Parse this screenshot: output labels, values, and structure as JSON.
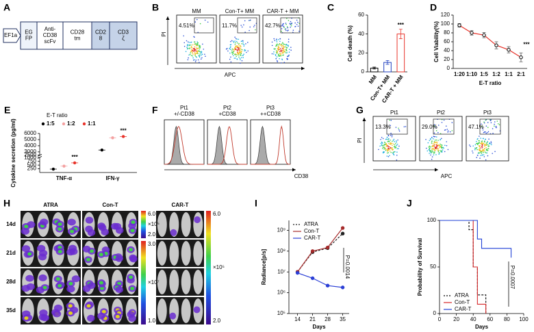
{
  "panel_a": {
    "label": "A",
    "segments": [
      [
        "EF1a"
      ],
      [
        "EG",
        "FP"
      ],
      [
        "Anti-",
        "CD38",
        "scFv"
      ],
      [
        "CD28",
        "tm"
      ],
      [
        "CD2",
        "8"
      ],
      [
        "CD3",
        "ζ"
      ]
    ]
  },
  "panel_b": {
    "label": "B",
    "plots": [
      {
        "title": "MM",
        "gate": "4.51%"
      },
      {
        "title": "Con-T+ MM",
        "gate": "11.7%"
      },
      {
        "title": "CAR-T + MM",
        "gate": "42.7%"
      }
    ],
    "y_label": "PI",
    "x_label": "APC"
  },
  "panel_f": {
    "label": "F",
    "plots": [
      {
        "title": [
          "Pt1",
          "+/-CD38"
        ]
      },
      {
        "title": [
          "Pt2",
          "+CD38"
        ]
      },
      {
        "title": [
          "Pt3",
          "++CD38"
        ]
      }
    ],
    "x_label": "CD38"
  },
  "panel_g": {
    "label": "G",
    "plots": [
      {
        "title": "Pt1",
        "gate": "13.3%"
      },
      {
        "title": "Pt2",
        "gate": "29.0%"
      },
      {
        "title": "Pt3",
        "gate": "47.1%"
      }
    ],
    "y_label": "PI",
    "x_label": "APC"
  },
  "panel_h": {
    "label": "H",
    "columns": [
      "ATRA",
      "Con-T",
      "CAR-T"
    ],
    "rows": [
      "14d",
      "21d",
      "28d",
      "35d"
    ],
    "scales": [
      [
        "6.0",
        "×10⁵",
        "2.0"
      ],
      [
        "3.0",
        "×10⁷",
        "1.0"
      ],
      [
        "6.0",
        "×10⁵",
        "2.0"
      ]
    ]
  },
  "chart_data": [
    {
      "type": "bar",
      "panel_label": "C",
      "categories": [
        "MM",
        "Con-T+ MM",
        "CAR-T + MM"
      ],
      "values": [
        4,
        10,
        40
      ],
      "errors": [
        1,
        2,
        5
      ],
      "colors": [
        "#000000",
        "#1f3fbf",
        "#e8332a"
      ],
      "ylim": [
        0,
        60
      ],
      "yticks": [
        0,
        20,
        40,
        60
      ],
      "y_label": "Cell death (%)",
      "annotation": "***"
    },
    {
      "type": "line",
      "panel_label": "D",
      "categories": [
        "1:20",
        "1:10",
        "1:5",
        "1:2",
        "1:1",
        "2:1"
      ],
      "values": [
        97,
        80,
        75,
        52,
        42,
        25
      ],
      "errors": [
        4,
        5,
        6,
        8,
        7,
        10
      ],
      "color": "#000000",
      "line_color": "#e8332a",
      "ylim": [
        0,
        120
      ],
      "yticks": [
        0,
        20,
        40,
        60,
        80,
        100,
        120
      ],
      "x_label": "E-T ratio",
      "y_label": "Cell Viability(%)",
      "annotation": "***"
    },
    {
      "type": "dot",
      "panel_label": "E",
      "categories": [
        "TNF-α",
        "IFN-γ"
      ],
      "legend_title": "E-T ratio",
      "series": [
        {
          "name": "1:5",
          "color": "#000000",
          "values": [
            230,
            3300
          ]
        },
        {
          "name": "1:2",
          "color": "#f4a0a0",
          "values": [
            430,
            5300
          ]
        },
        {
          "name": "1:1",
          "color": "#e8332a",
          "values": [
            650,
            5500
          ]
        }
      ],
      "ylim": [
        0,
        6000
      ],
      "axis_break": [
        1000,
        2500
      ],
      "yticks": [
        250,
        500,
        750,
        1000,
        2500,
        3000,
        4000,
        5000,
        6000
      ],
      "y_label": "Cytokine secretion (pg/ml)",
      "annotations": [
        "***",
        "***"
      ]
    },
    {
      "type": "line",
      "panel_label": "I",
      "x": [
        14,
        21,
        28,
        35
      ],
      "xlim": [
        10,
        38
      ],
      "xticks": [
        14,
        21,
        28,
        35
      ],
      "log_y": true,
      "ylim": [
        100000,
        3000000000
      ],
      "yticks": [
        {
          "value": 100000,
          "label": "10⁵"
        },
        {
          "value": 1000000,
          "label": "10⁶"
        },
        {
          "value": 10000000,
          "label": "10⁷"
        },
        {
          "value": 100000000,
          "label": "10⁸"
        },
        {
          "value": 1000000000,
          "label": "10⁹"
        }
      ],
      "series": [
        {
          "name": "ATRA",
          "color": "#222222",
          "dash": true,
          "values": [
            10000000,
            90000000,
            140000000,
            700000000
          ]
        },
        {
          "name": "Con-T",
          "color": "#a52a2a",
          "values": [
            10000000,
            100000000,
            150000000,
            1300000000
          ]
        },
        {
          "name": "CAR-T",
          "color": "#2b3fd6",
          "values": [
            9000000,
            5000000,
            2200000,
            1800000
          ]
        }
      ],
      "legend": "upper left",
      "x_label": "Days",
      "y_label": "Radiance[p/s]",
      "annotation": "P=0.0014"
    },
    {
      "type": "step",
      "panel_label": "J",
      "xlim": [
        0,
        100
      ],
      "xticks": [
        0,
        20,
        40,
        60,
        80,
        100
      ],
      "ylim": [
        0,
        100
      ],
      "yticks": [
        0,
        50,
        100
      ],
      "series": [
        {
          "name": "ATRA",
          "color": "#000000",
          "dash": true,
          "x": [
            0,
            35,
            40,
            45,
            55
          ],
          "values": [
            100,
            90,
            50,
            20,
            0
          ]
        },
        {
          "name": "Con-T",
          "color": "#d62728",
          "x": [
            0,
            40,
            45,
            55
          ],
          "values": [
            100,
            50,
            10,
            0
          ]
        },
        {
          "name": "CAR-T",
          "color": "#1f3fd6",
          "x": [
            0,
            45,
            50,
            85
          ],
          "values": [
            100,
            80,
            70,
            60
          ]
        }
      ],
      "legend": "lower left",
      "x_label": "Days",
      "y_label": "Probability of Survival",
      "annotation": "P=0.0007"
    }
  ]
}
